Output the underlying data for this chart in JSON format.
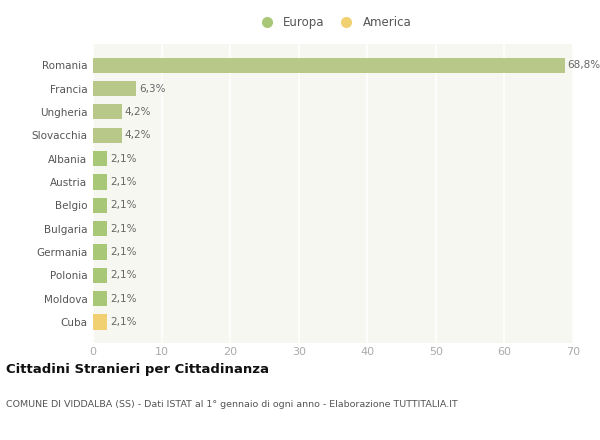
{
  "categories": [
    "Cuba",
    "Moldova",
    "Polonia",
    "Germania",
    "Bulgaria",
    "Belgio",
    "Austria",
    "Albania",
    "Slovacchia",
    "Ungheria",
    "Francia",
    "Romania"
  ],
  "values": [
    2.1,
    2.1,
    2.1,
    2.1,
    2.1,
    2.1,
    2.1,
    2.1,
    4.2,
    4.2,
    6.3,
    68.8
  ],
  "labels": [
    "2,1%",
    "2,1%",
    "2,1%",
    "2,1%",
    "2,1%",
    "2,1%",
    "2,1%",
    "2,1%",
    "4,2%",
    "4,2%",
    "6,3%",
    "68,8%"
  ],
  "colors": [
    "#f0d070",
    "#a8c878",
    "#a8c878",
    "#a8c878",
    "#a8c878",
    "#a8c878",
    "#a8c878",
    "#a8c878",
    "#b8c888",
    "#b8c888",
    "#b8c888",
    "#b8c888"
  ],
  "europa_color": "#a8c878",
  "america_color": "#f0d070",
  "bg_color": "#ffffff",
  "plot_bg_color": "#f7f7f2",
  "grid_color": "#ffffff",
  "xlim": [
    0,
    70
  ],
  "xticks": [
    0,
    10,
    20,
    30,
    40,
    50,
    60,
    70
  ],
  "title": "Cittadini Stranieri per Cittadinanza",
  "subtitle": "COMUNE DI VIDDALBA (SS) - Dati ISTAT al 1° gennaio di ogni anno - Elaborazione TUTTITALIA.IT",
  "legend_europa": "Europa",
  "legend_america": "America"
}
